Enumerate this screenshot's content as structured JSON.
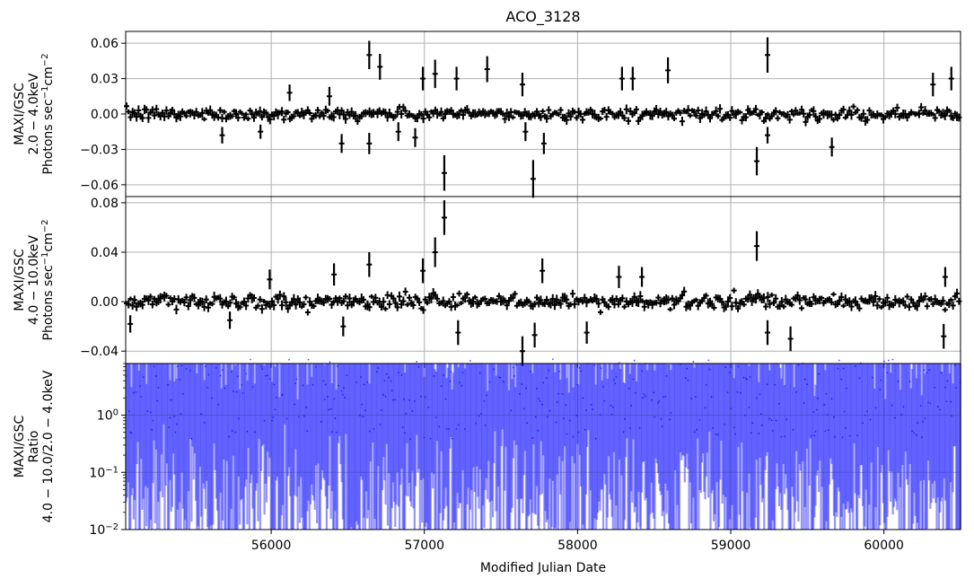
{
  "chart_data": {
    "type": "scatter",
    "title": "ACO_3128",
    "xlabel": "Modified Julian Date",
    "xlim": [
      55050,
      60500
    ],
    "x_ticks": [
      56000,
      57000,
      58000,
      59000,
      60000
    ],
    "grid": true,
    "panels": [
      {
        "id": "soft",
        "ylabel_lines": [
          "MAXI/GSC",
          "2.0 − 4.0keV",
          "Photons sec⁻¹cm⁻²"
        ],
        "ylim": [
          -0.07,
          0.07
        ],
        "y_ticks": [
          0.06,
          0.03,
          0.0,
          -0.03,
          -0.06
        ],
        "y_tick_labels": [
          "0.06",
          "0.03",
          "0.00",
          "−0.03",
          "−0.06"
        ],
        "color": "#000000",
        "scatter_sigma": 0.004,
        "typical_error": 0.003,
        "spikes": [
          {
            "x": 56640,
            "y": 0.05,
            "err": 0.012
          },
          {
            "x": 56640,
            "y": -0.025,
            "err": 0.009
          },
          {
            "x": 56710,
            "y": 0.04,
            "err": 0.011
          },
          {
            "x": 56460,
            "y": -0.025,
            "err": 0.008
          },
          {
            "x": 56380,
            "y": 0.015,
            "err": 0.008
          },
          {
            "x": 56830,
            "y": -0.015,
            "err": 0.008
          },
          {
            "x": 56940,
            "y": -0.02,
            "err": 0.008
          },
          {
            "x": 56990,
            "y": 0.03,
            "err": 0.01
          },
          {
            "x": 57070,
            "y": 0.034,
            "err": 0.012
          },
          {
            "x": 57130,
            "y": -0.05,
            "err": 0.015
          },
          {
            "x": 57210,
            "y": 0.03,
            "err": 0.01
          },
          {
            "x": 57410,
            "y": 0.038,
            "err": 0.011
          },
          {
            "x": 57640,
            "y": 0.025,
            "err": 0.01
          },
          {
            "x": 57660,
            "y": -0.015,
            "err": 0.008
          },
          {
            "x": 57710,
            "y": -0.055,
            "err": 0.016
          },
          {
            "x": 57780,
            "y": -0.025,
            "err": 0.009
          },
          {
            "x": 58290,
            "y": 0.03,
            "err": 0.01
          },
          {
            "x": 58360,
            "y": 0.03,
            "err": 0.01
          },
          {
            "x": 58590,
            "y": 0.037,
            "err": 0.011
          },
          {
            "x": 59170,
            "y": -0.04,
            "err": 0.012
          },
          {
            "x": 59240,
            "y": 0.05,
            "err": 0.015
          },
          {
            "x": 59240,
            "y": -0.018,
            "err": 0.007
          },
          {
            "x": 59660,
            "y": -0.028,
            "err": 0.008
          },
          {
            "x": 60320,
            "y": 0.025,
            "err": 0.01
          },
          {
            "x": 60440,
            "y": 0.03,
            "err": 0.01
          },
          {
            "x": 55680,
            "y": -0.018,
            "err": 0.007
          },
          {
            "x": 55930,
            "y": -0.015,
            "err": 0.006
          },
          {
            "x": 56120,
            "y": 0.018,
            "err": 0.007
          }
        ]
      },
      {
        "id": "hard",
        "ylabel_lines": [
          "MAXI/GSC",
          "4.0 − 10.0keV",
          "Photons sec⁻¹cm⁻²"
        ],
        "ylim": [
          -0.05,
          0.085
        ],
        "y_ticks": [
          0.08,
          0.04,
          0.0,
          -0.04
        ],
        "y_tick_labels": [
          "0.08",
          "0.04",
          "0.00",
          "−0.04"
        ],
        "color": "#000000",
        "scatter_sigma": 0.005,
        "typical_error": 0.003,
        "spikes": [
          {
            "x": 55990,
            "y": 0.018,
            "err": 0.008
          },
          {
            "x": 56410,
            "y": 0.022,
            "err": 0.009
          },
          {
            "x": 56470,
            "y": -0.02,
            "err": 0.008
          },
          {
            "x": 56640,
            "y": 0.03,
            "err": 0.01
          },
          {
            "x": 56990,
            "y": 0.025,
            "err": 0.01
          },
          {
            "x": 57070,
            "y": 0.04,
            "err": 0.012
          },
          {
            "x": 57130,
            "y": 0.068,
            "err": 0.014
          },
          {
            "x": 57220,
            "y": -0.025,
            "err": 0.01
          },
          {
            "x": 57640,
            "y": -0.04,
            "err": 0.012
          },
          {
            "x": 57720,
            "y": -0.027,
            "err": 0.01
          },
          {
            "x": 57770,
            "y": 0.025,
            "err": 0.01
          },
          {
            "x": 58060,
            "y": -0.025,
            "err": 0.009
          },
          {
            "x": 58270,
            "y": 0.02,
            "err": 0.009
          },
          {
            "x": 58420,
            "y": 0.02,
            "err": 0.008
          },
          {
            "x": 59170,
            "y": 0.045,
            "err": 0.012
          },
          {
            "x": 59240,
            "y": -0.025,
            "err": 0.01
          },
          {
            "x": 59390,
            "y": -0.03,
            "err": 0.01
          },
          {
            "x": 60400,
            "y": 0.02,
            "err": 0.008
          },
          {
            "x": 60390,
            "y": -0.028,
            "err": 0.01
          },
          {
            "x": 55080,
            "y": -0.018,
            "err": 0.007
          },
          {
            "x": 55730,
            "y": -0.015,
            "err": 0.007
          }
        ]
      },
      {
        "id": "ratio",
        "ylabel_lines": [
          "MAXI/GSC",
          "Ratio",
          "4.0 − 10.0/2.0 − 4.0keV"
        ],
        "yscale": "log",
        "ylim": [
          0.01,
          8
        ],
        "y_ticks": [
          1.0,
          0.1,
          0.01
        ],
        "y_tick_labels": [
          "10^0",
          "10^-1",
          "10^-2"
        ],
        "color": "#0000ff"
      }
    ]
  }
}
